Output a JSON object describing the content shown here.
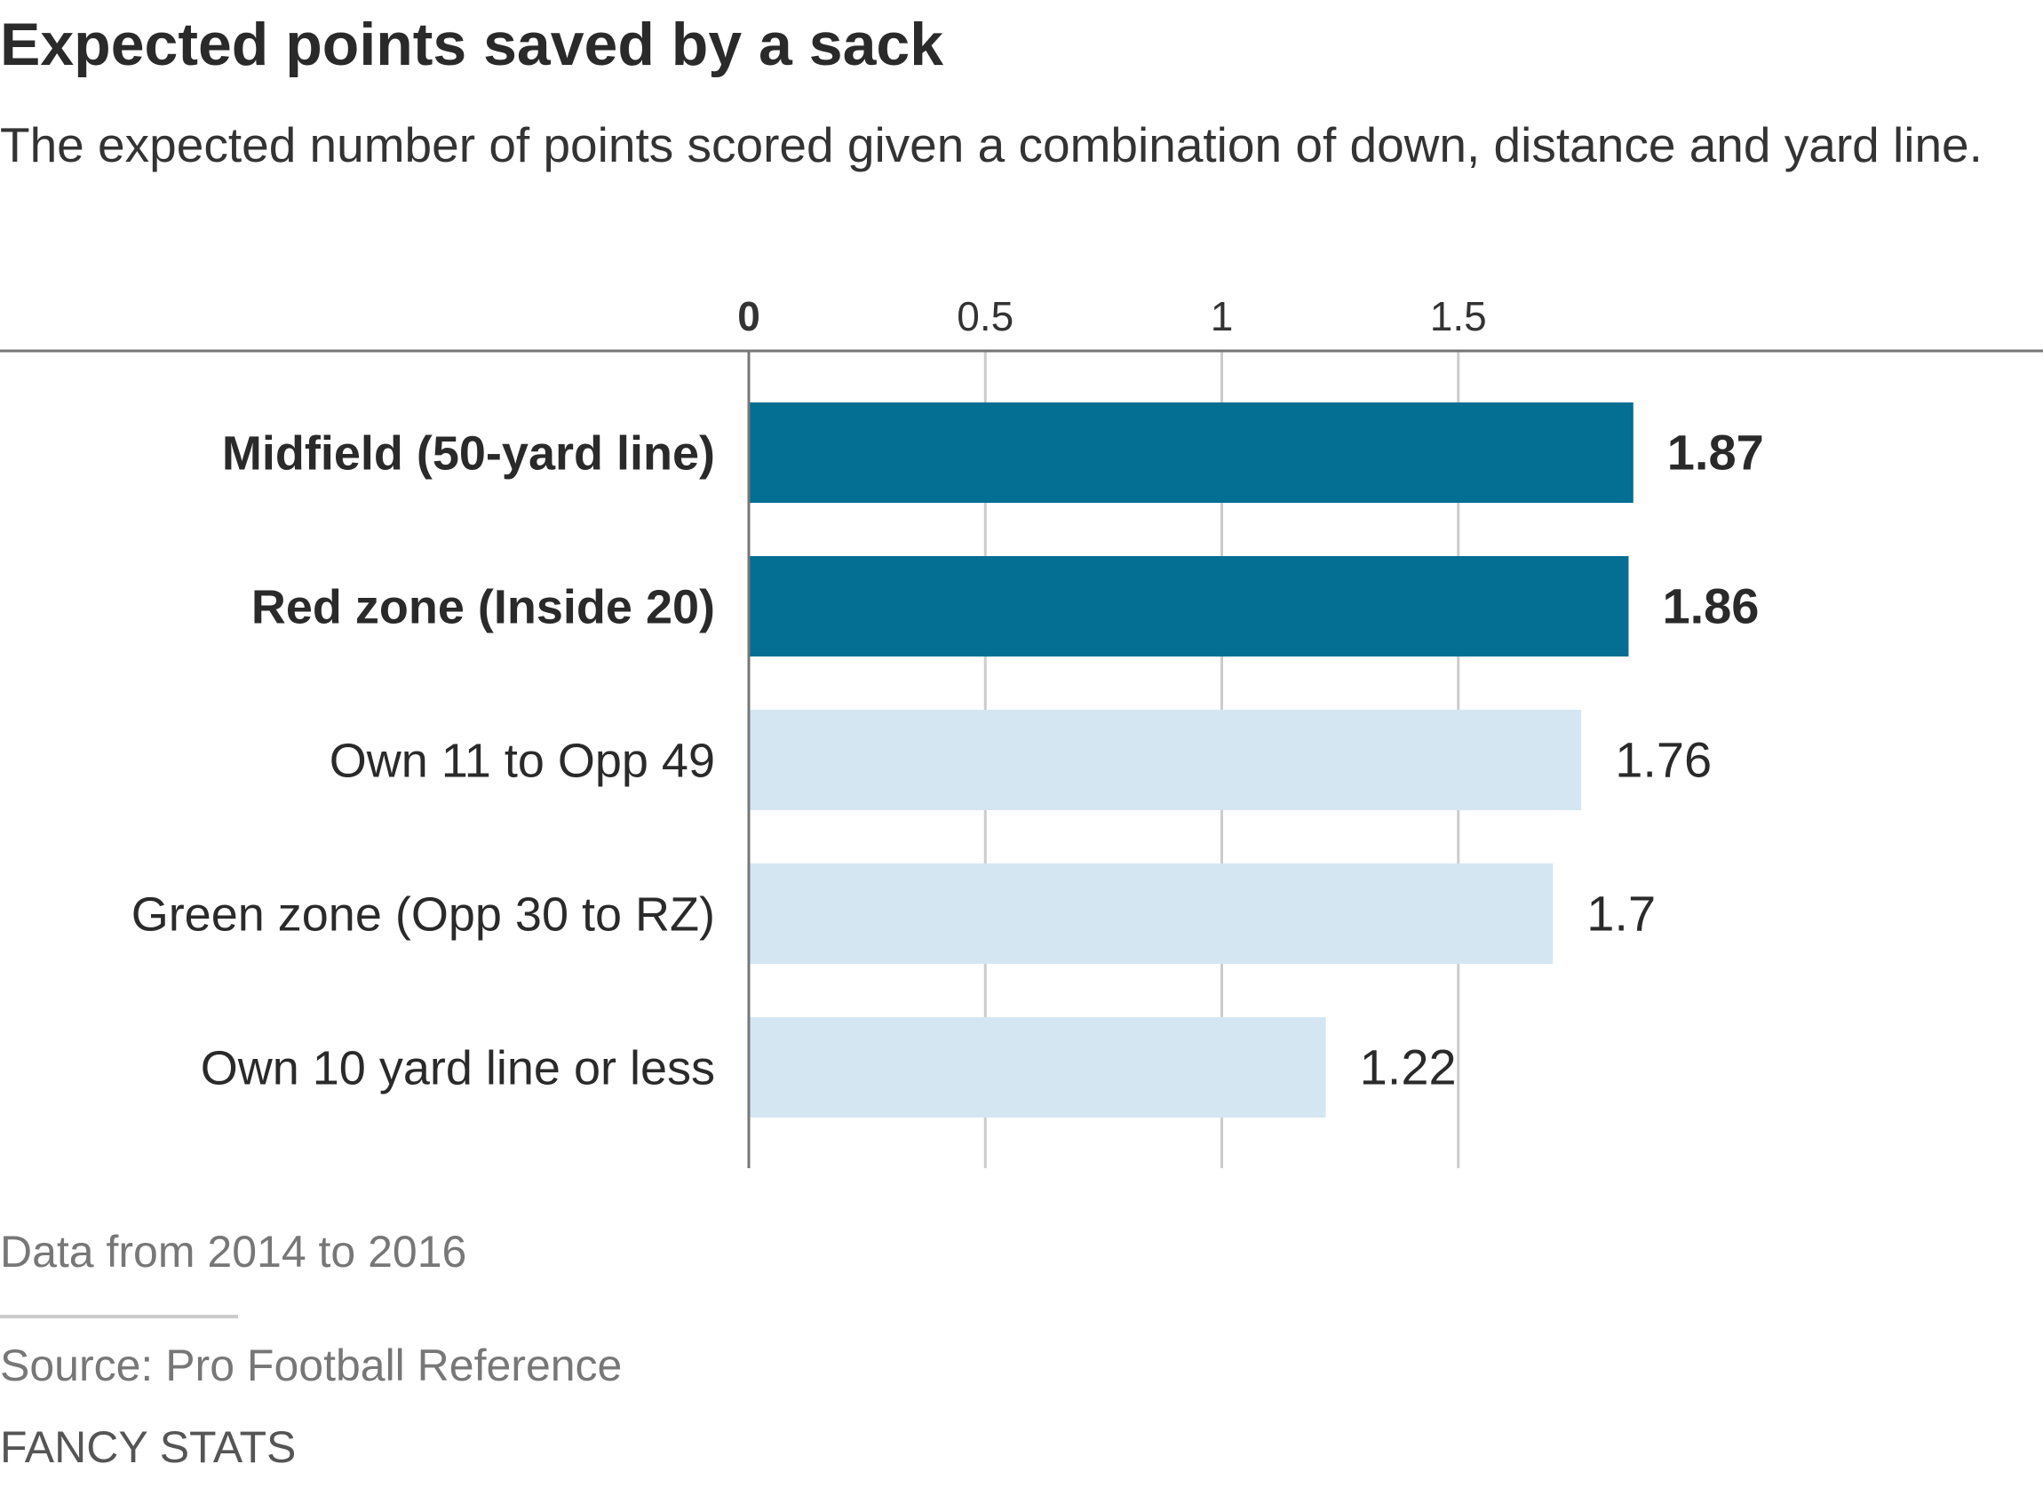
{
  "title": "Expected points saved by a sack",
  "subtitle": "The expected number of points scored given a combination of down, distance and yard line.",
  "note": "Data from 2014 to 2016",
  "source": "Source: Pro Football Reference",
  "credit": "FANCY STATS",
  "colors": {
    "highlight": "#046e93",
    "muted": "#d5e6f3",
    "grid": "#cccccc",
    "axis": "#777777"
  },
  "chart_data": {
    "type": "bar",
    "orientation": "horizontal",
    "categories": [
      "Midfield (50-yard line)",
      "Red zone (Inside 20)",
      "Own 11 to Opp 49",
      "Green zone (Opp 30 to RZ)",
      "Own 10 yard line or less"
    ],
    "values": [
      1.87,
      1.86,
      1.76,
      1.7,
      1.22
    ],
    "value_labels": [
      "1.87",
      "1.86",
      "1.76",
      "1.7",
      "1.22"
    ],
    "highlighted": [
      true,
      true,
      false,
      false,
      false
    ],
    "xticks": [
      0,
      0.5,
      1,
      1.5
    ],
    "xtick_labels": [
      "0",
      "0.5",
      "1",
      "1.5"
    ],
    "xlim": [
      0,
      2.0
    ],
    "grid": true,
    "axis_position": "top"
  }
}
